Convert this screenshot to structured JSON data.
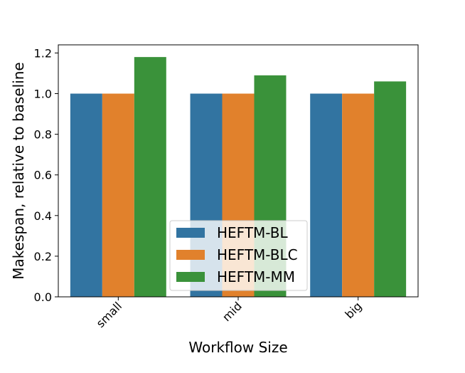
{
  "chart_data": {
    "type": "bar",
    "categories": [
      "small",
      "mid",
      "big"
    ],
    "series": [
      {
        "name": "HEFTM-BL",
        "color": "#3274a1",
        "values": [
          1.0,
          1.0,
          1.0
        ]
      },
      {
        "name": "HEFTM-BLC",
        "color": "#e1812c",
        "values": [
          1.0,
          1.0,
          1.0
        ]
      },
      {
        "name": "HEFTM-MM",
        "color": "#3a923a",
        "values": [
          1.18,
          1.09,
          1.06
        ]
      }
    ],
    "title": "",
    "xlabel": "Workflow Size",
    "ylabel": "Makespan, relative to baseline",
    "ylim": [
      0,
      1.24
    ],
    "yticks": [
      0.0,
      0.2,
      0.4,
      0.6,
      0.8,
      1.0,
      1.2
    ],
    "ytick_labels": [
      "0.0",
      "0.2",
      "0.4",
      "0.6",
      "0.8",
      "1.0",
      "1.2"
    ],
    "grid": false,
    "legend_position": "bottom-center"
  }
}
